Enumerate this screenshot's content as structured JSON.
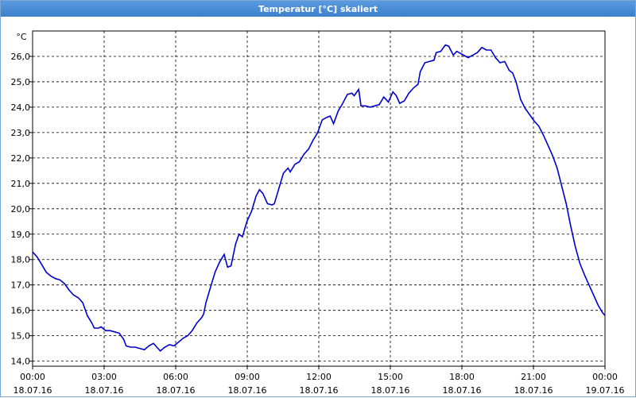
{
  "window": {
    "title": "Temperatur [°C] skaliert"
  },
  "chart_data": {
    "type": "line",
    "title": "Temperatur [°C] skaliert",
    "ylabel": "°C",
    "xlabel": "",
    "ylim": [
      13.8,
      27
    ],
    "xlim_hours": [
      0,
      24
    ],
    "grid": true,
    "y_ticks": [
      "14,0",
      "15,0",
      "16,0",
      "17,0",
      "18,0",
      "19,0",
      "20,0",
      "21,0",
      "22,0",
      "23,0",
      "24,0",
      "25,0",
      "26,0"
    ],
    "x_ticks": [
      {
        "time": "00:00",
        "date": "18.07.16"
      },
      {
        "time": "03:00",
        "date": "18.07.16"
      },
      {
        "time": "06:00",
        "date": "18.07.16"
      },
      {
        "time": "09:00",
        "date": "18.07.16"
      },
      {
        "time": "12:00",
        "date": "18.07.16"
      },
      {
        "time": "15:00",
        "date": "18.07.16"
      },
      {
        "time": "18:00",
        "date": "18.07.16"
      },
      {
        "time": "21:00",
        "date": "18.07.16"
      },
      {
        "time": "00:00",
        "date": "19.07.16"
      }
    ],
    "series": [
      {
        "color": "#0000cc",
        "points": [
          [
            0.0,
            18.3
          ],
          [
            0.2,
            18.1
          ],
          [
            0.4,
            17.8
          ],
          [
            0.6,
            17.5
          ],
          [
            0.8,
            17.35
          ],
          [
            1.0,
            17.25
          ],
          [
            1.2,
            17.2
          ],
          [
            1.4,
            17.05
          ],
          [
            1.6,
            16.8
          ],
          [
            1.8,
            16.6
          ],
          [
            2.0,
            16.5
          ],
          [
            2.2,
            16.3
          ],
          [
            2.4,
            15.8
          ],
          [
            2.6,
            15.5
          ],
          [
            2.7,
            15.3
          ],
          [
            2.9,
            15.3
          ],
          [
            3.0,
            15.35
          ],
          [
            3.2,
            15.2
          ],
          [
            3.4,
            15.2
          ],
          [
            3.6,
            15.15
          ],
          [
            3.8,
            15.1
          ],
          [
            4.0,
            14.85
          ],
          [
            4.1,
            14.6
          ],
          [
            4.3,
            14.55
          ],
          [
            4.5,
            14.55
          ],
          [
            4.7,
            14.5
          ],
          [
            4.9,
            14.45
          ],
          [
            5.1,
            14.6
          ],
          [
            5.3,
            14.7
          ],
          [
            5.5,
            14.5
          ],
          [
            5.6,
            14.4
          ],
          [
            5.8,
            14.55
          ],
          [
            6.0,
            14.65
          ],
          [
            6.2,
            14.6
          ],
          [
            6.4,
            14.75
          ],
          [
            6.6,
            14.9
          ],
          [
            6.8,
            15.0
          ],
          [
            7.0,
            15.2
          ],
          [
            7.2,
            15.5
          ],
          [
            7.4,
            15.7
          ],
          [
            7.5,
            15.85
          ],
          [
            7.6,
            16.3
          ],
          [
            7.8,
            16.9
          ],
          [
            8.0,
            17.5
          ],
          [
            8.2,
            17.9
          ],
          [
            8.4,
            18.2
          ],
          [
            8.55,
            17.7
          ],
          [
            8.7,
            17.75
          ],
          [
            8.9,
            18.6
          ],
          [
            9.05,
            19.0
          ],
          [
            9.2,
            18.9
          ],
          [
            9.4,
            19.5
          ],
          [
            9.6,
            19.9
          ],
          [
            9.8,
            20.5
          ],
          [
            9.95,
            20.75
          ],
          [
            10.1,
            20.6
          ],
          [
            10.3,
            20.2
          ],
          [
            10.5,
            20.15
          ],
          [
            10.6,
            20.2
          ],
          [
            10.8,
            20.8
          ],
          [
            11.0,
            21.4
          ],
          [
            11.2,
            21.6
          ],
          [
            11.3,
            21.45
          ],
          [
            11.5,
            21.75
          ],
          [
            11.7,
            21.85
          ],
          [
            11.9,
            22.15
          ],
          [
            12.1,
            22.35
          ],
          [
            12.3,
            22.7
          ],
          [
            12.5,
            23.0
          ],
          [
            12.7,
            23.5
          ],
          [
            12.9,
            23.6
          ],
          [
            13.05,
            23.65
          ],
          [
            13.2,
            23.35
          ],
          [
            13.4,
            23.85
          ],
          [
            13.6,
            24.15
          ],
          [
            13.8,
            24.5
          ],
          [
            14.0,
            24.55
          ],
          [
            14.1,
            24.45
          ],
          [
            14.3,
            24.7
          ],
          [
            14.4,
            24.05
          ],
          [
            14.6,
            24.05
          ],
          [
            14.8,
            24.0
          ],
          [
            15.0,
            24.05
          ],
          [
            15.2,
            24.1
          ],
          [
            15.4,
            24.4
          ],
          [
            15.6,
            24.2
          ],
          [
            15.8,
            24.6
          ],
          [
            15.95,
            24.45
          ],
          [
            16.1,
            24.15
          ],
          [
            16.3,
            24.25
          ],
          [
            16.5,
            24.55
          ],
          [
            16.7,
            24.75
          ],
          [
            16.9,
            24.9
          ],
          [
            17.0,
            25.4
          ],
          [
            17.2,
            25.75
          ],
          [
            17.4,
            25.8
          ],
          [
            17.6,
            25.85
          ],
          [
            17.7,
            26.15
          ],
          [
            17.9,
            26.2
          ],
          [
            18.1,
            26.45
          ],
          [
            18.25,
            26.4
          ],
          [
            18.45,
            26.05
          ],
          [
            18.6,
            26.2
          ],
          [
            18.8,
            26.1
          ],
          [
            19.0,
            26.0
          ],
          [
            19.1,
            25.95
          ],
          [
            19.3,
            26.05
          ],
          [
            19.5,
            26.15
          ],
          [
            19.7,
            26.35
          ],
          [
            19.9,
            26.25
          ],
          [
            20.1,
            26.25
          ],
          [
            20.3,
            25.95
          ],
          [
            20.5,
            25.75
          ],
          [
            20.7,
            25.8
          ],
          [
            20.9,
            25.45
          ],
          [
            21.05,
            25.35
          ],
          [
            21.2,
            25.0
          ],
          [
            21.4,
            24.3
          ],
          [
            21.6,
            23.95
          ],
          [
            21.8,
            23.7
          ],
          [
            22.0,
            23.45
          ],
          [
            22.2,
            23.25
          ],
          [
            22.4,
            22.9
          ],
          [
            22.6,
            22.5
          ],
          [
            22.8,
            22.1
          ],
          [
            23.0,
            21.6
          ],
          [
            23.2,
            20.9
          ],
          [
            23.4,
            20.2
          ],
          [
            23.6,
            19.3
          ],
          [
            23.8,
            18.5
          ],
          [
            24.0,
            17.85
          ],
          [
            24.2,
            17.4
          ],
          [
            24.4,
            17.0
          ],
          [
            24.6,
            16.6
          ],
          [
            24.8,
            16.2
          ],
          [
            25.0,
            15.9
          ],
          [
            25.1,
            15.8
          ]
        ]
      }
    ]
  }
}
